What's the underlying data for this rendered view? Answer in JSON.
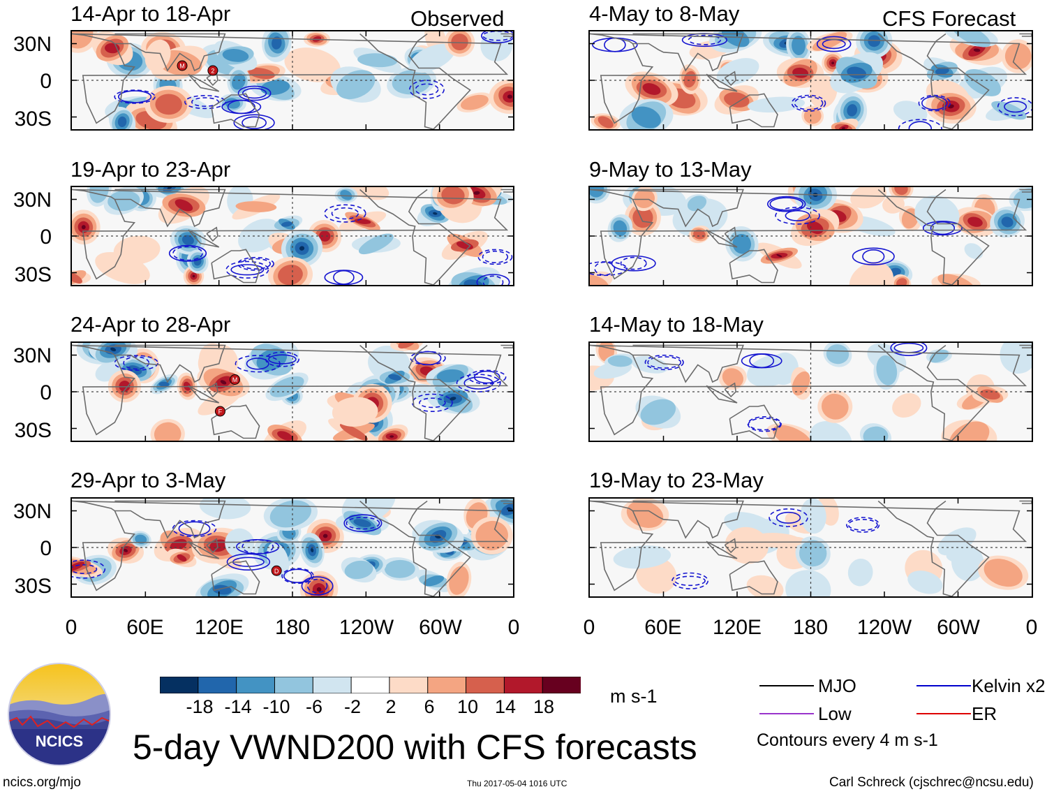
{
  "panels_left": [
    {
      "title": "14-Apr to 18-Apr",
      "tag": "Observed"
    },
    {
      "title": "19-Apr to 23-Apr",
      "tag": ""
    },
    {
      "title": "24-Apr to 28-Apr",
      "tag": ""
    },
    {
      "title": "29-Apr to 3-May",
      "tag": ""
    }
  ],
  "panels_right": [
    {
      "title": "4-May to 8-May",
      "tag": "CFS Forecast"
    },
    {
      "title": "9-May to 13-May",
      "tag": ""
    },
    {
      "title": "14-May to 18-May",
      "tag": ""
    },
    {
      "title": "19-May to 23-May",
      "tag": ""
    }
  ],
  "y_ticks": [
    "30N",
    "0",
    "30S"
  ],
  "x_ticks": [
    "0",
    "60E",
    "120E",
    "180",
    "120W",
    "60W",
    "0"
  ],
  "colorbar": {
    "unit": "m s-1",
    "labels": [
      "-18",
      "-14",
      "-10",
      "-6",
      "-2",
      "2",
      "6",
      "10",
      "14",
      "18"
    ],
    "colors": [
      "#053061",
      "#2166ac",
      "#4393c3",
      "#92c5de",
      "#d1e5f0",
      "#ffffff",
      "#fddbc7",
      "#f4a582",
      "#d6604d",
      "#b2182b",
      "#67001f"
    ]
  },
  "legend": {
    "items": [
      {
        "label": "MJO",
        "color": "#000000"
      },
      {
        "label": "Kelvin x2",
        "color": "#0000cc"
      },
      {
        "label": "Low",
        "color": "#9933cc"
      },
      {
        "label": "ER",
        "color": "#dd0000"
      }
    ],
    "note": "Contours every 4 m s-1"
  },
  "logo_text": "NCICS",
  "main_title": "5-day VWND200 with CFS forecasts",
  "footer": {
    "left": "ncics.org/mjo",
    "center": "Thu 2017-05-04 1016 UTC",
    "right": "Carl Schreck (cjschrec@ncsu.edu)"
  },
  "storm_markers": {
    "panel1": [
      "M",
      "2"
    ],
    "panel3": [
      "M",
      "F"
    ],
    "panel4": [
      "D"
    ]
  }
}
